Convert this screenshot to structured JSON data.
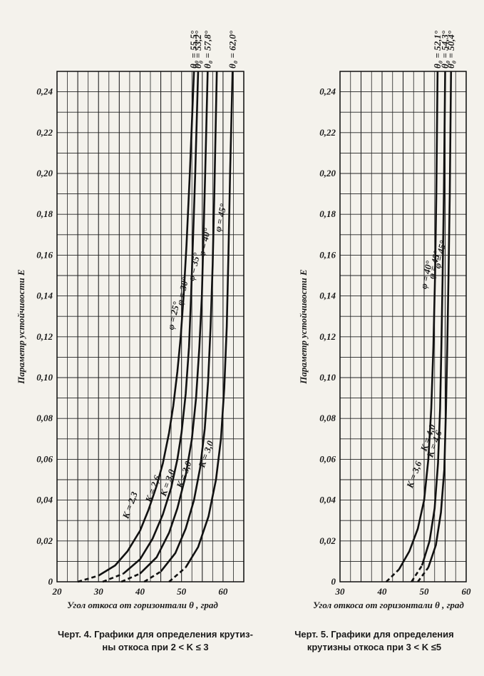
{
  "chart_data": [
    {
      "type": "line",
      "ylabel": "Параметр устойчивости E",
      "xlabel": "Угол откоса от горизонтали θ , град",
      "caption_line1": "Черт. 4. Графики для определения крутиз-",
      "caption_line2": "ны откоса при 2 < K ≤ 3",
      "xlim": [
        20,
        65
      ],
      "ylim": [
        0,
        0.25
      ],
      "x_ticks": [
        20,
        30,
        40,
        50,
        60
      ],
      "y_ticks": [
        "0",
        "0,02",
        "0,04",
        "0,06",
        "0,08",
        "0,10",
        "0,12",
        "0,14",
        "0,16",
        "0,18",
        "0,20",
        "0,22",
        "0,24"
      ],
      "grid": true,
      "series": [
        {
          "name": "φ = 25°",
          "K": "K = 2,3",
          "theta0": "θ₀ = 55,5°",
          "x": [
            25,
            30,
            34,
            37,
            40,
            42,
            44,
            45.5,
            47,
            48,
            49,
            49.8,
            50.5,
            51.2,
            52,
            53
          ],
          "y": [
            0,
            0.003,
            0.008,
            0.015,
            0.025,
            0.035,
            0.047,
            0.058,
            0.073,
            0.086,
            0.103,
            0.12,
            0.14,
            0.165,
            0.2,
            0.25
          ]
        },
        {
          "name": "φ = 30°",
          "K": "K = 2,6",
          "theta0": "θ₀ = 53,2°",
          "x": [
            31,
            36,
            40,
            43,
            45.5,
            47.5,
            49,
            50,
            51,
            51.8,
            52.3,
            52.8,
            53.3,
            54
          ],
          "y": [
            0,
            0.004,
            0.011,
            0.021,
            0.033,
            0.046,
            0.06,
            0.073,
            0.092,
            0.115,
            0.14,
            0.17,
            0.2,
            0.25
          ]
        },
        {
          "name": "φ = 35°",
          "K": "K = 3,0",
          "theta0": "θ₀ = 57,8°",
          "x": [
            35.5,
            40,
            44,
            47,
            49,
            51,
            52.5,
            53.5,
            54.3,
            54.9,
            55.3,
            55.7,
            56.3
          ],
          "y": [
            0,
            0.004,
            0.012,
            0.024,
            0.036,
            0.052,
            0.07,
            0.09,
            0.115,
            0.14,
            0.17,
            0.2,
            0.25
          ]
        },
        {
          "name": "φ = 40°",
          "K": "K = 3,0",
          "theta0": "",
          "x": [
            41,
            45,
            48.5,
            51,
            53,
            54.5,
            55.6,
            56.4,
            57,
            57.5,
            57.9,
            58.5
          ],
          "y": [
            0,
            0.005,
            0.014,
            0.026,
            0.04,
            0.056,
            0.075,
            0.098,
            0.125,
            0.155,
            0.19,
            0.25
          ]
        },
        {
          "name": "φ = 45°",
          "K": "K = 3,0",
          "theta0": "θ₀ = 62,0°",
          "x": [
            47,
            51,
            54,
            56.5,
            58.3,
            59.5,
            60.3,
            60.9,
            61.3,
            61.7,
            62.3
          ],
          "y": [
            0,
            0.007,
            0.017,
            0.032,
            0.05,
            0.07,
            0.095,
            0.125,
            0.16,
            0.2,
            0.25
          ]
        }
      ]
    },
    {
      "type": "line",
      "ylabel": "Параметр устойчивости E",
      "xlabel": "Угол откоса от горизонтали θ , град",
      "caption_line1": "Черт. 5. Графики для определения",
      "caption_line2": "крутизны откоса при 3 < K ≤5",
      "xlim": [
        30,
        60
      ],
      "ylim": [
        0,
        0.25
      ],
      "x_ticks": [
        30,
        40,
        50,
        60
      ],
      "y_ticks": [
        "0",
        "0,02",
        "0,04",
        "0,06",
        "0,08",
        "0,10",
        "0,12",
        "0,14",
        "0,16",
        "0,18",
        "0,20",
        "0,22",
        "0,24"
      ],
      "grid": true,
      "series": [
        {
          "name": "φ = 40°",
          "K": "K = 3,6",
          "theta0": "θ₀ = 52,1°",
          "x": [
            41,
            44,
            46.5,
            48.5,
            50,
            51,
            51.7,
            52.2,
            52.6,
            52.9,
            53.2
          ],
          "y": [
            0,
            0.006,
            0.015,
            0.026,
            0.04,
            0.06,
            0.085,
            0.115,
            0.15,
            0.19,
            0.25
          ]
        },
        {
          "name": "φ = 45°",
          "K": "K = 4,0",
          "theta0": "θ₀ = 54,3°",
          "x": [
            47,
            49.5,
            51.3,
            52.5,
            53.3,
            53.8,
            54.1,
            54.4,
            54.7,
            55
          ],
          "y": [
            0,
            0.008,
            0.02,
            0.036,
            0.058,
            0.085,
            0.115,
            0.15,
            0.19,
            0.25
          ]
        },
        {
          "name": "φ = 45°",
          "K": "K = 4,6",
          "theta0": "θ₀ = 50,4°",
          "x": [
            48.5,
            51,
            52.8,
            54,
            54.8,
            55.2,
            55.5,
            55.8,
            56.1,
            56.4
          ],
          "y": [
            0,
            0.007,
            0.018,
            0.034,
            0.055,
            0.085,
            0.115,
            0.15,
            0.19,
            0.25
          ]
        }
      ]
    }
  ]
}
